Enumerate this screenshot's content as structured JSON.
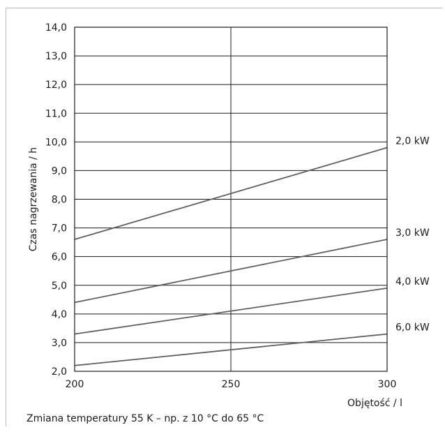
{
  "chart_data": {
    "type": "line",
    "xlabel": "Objętość / l",
    "ylabel": "Czas nagrzewania / h",
    "xlim": [
      200,
      300
    ],
    "ylim": [
      2.0,
      14.0
    ],
    "x_ticks": [
      "200",
      "250",
      "300"
    ],
    "y_ticks": [
      "2,0",
      "3,0",
      "4,0",
      "5,0",
      "6,0",
      "7,0",
      "8,0",
      "9,0",
      "10,0",
      "11,0",
      "12,0",
      "13,0",
      "14,0"
    ],
    "grid": true,
    "legend": "right",
    "series": [
      {
        "name": "2,0 kW",
        "x": [
          200,
          300
        ],
        "y": [
          6.6,
          9.8
        ]
      },
      {
        "name": "3,0 kW",
        "x": [
          200,
          300
        ],
        "y": [
          4.4,
          6.6
        ]
      },
      {
        "name": "4,0 kW",
        "x": [
          200,
          300
        ],
        "y": [
          3.3,
          4.9
        ]
      },
      {
        "name": "6,0 kW",
        "x": [
          200,
          300
        ],
        "y": [
          2.2,
          3.3
        ]
      }
    ],
    "line_color": "#5f5f5f"
  },
  "caption": "Zmiana temperatury 55 K –  np. z 10 °C do 65 °C"
}
